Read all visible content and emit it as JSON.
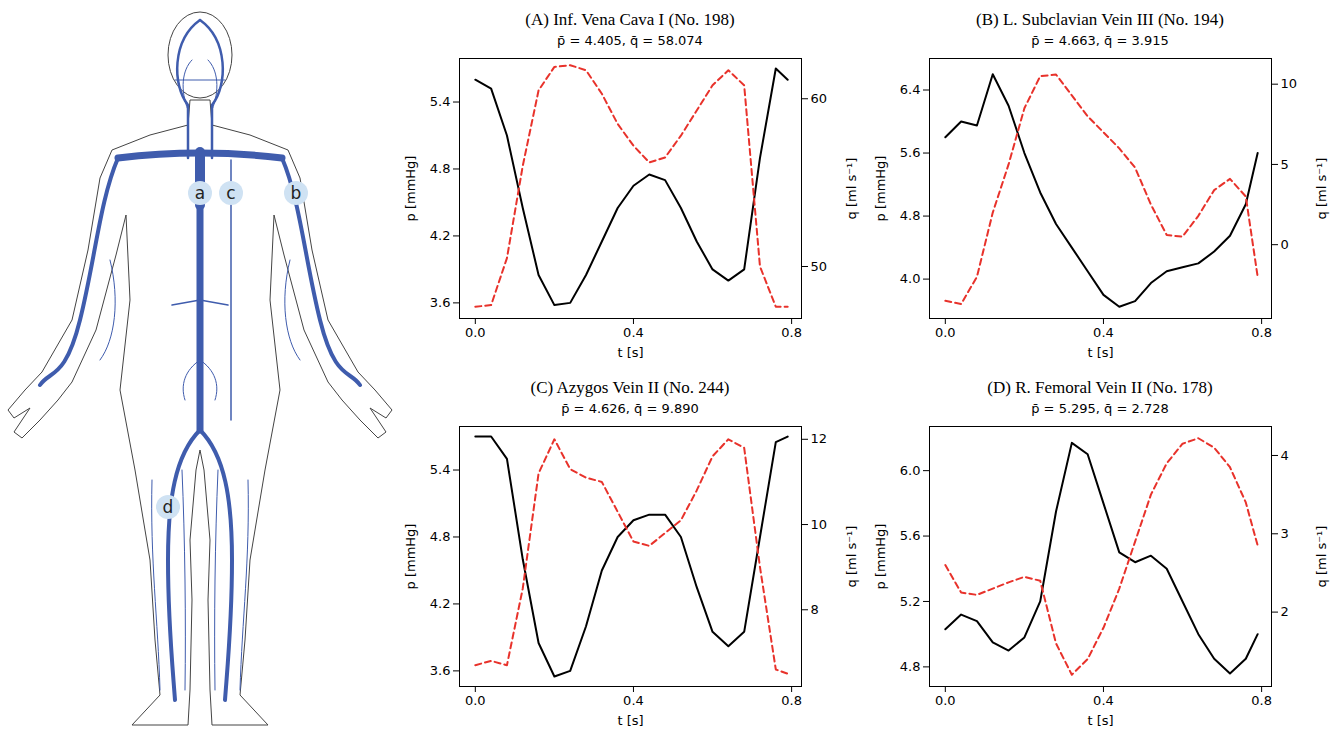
{
  "diagram": {
    "labels": [
      "a",
      "b",
      "c",
      "d"
    ]
  },
  "chart_data": [
    {
      "type": "line",
      "title": "(A) Inf. Vena Cava I (No. 198)",
      "subtitle": "p̄ = 4.405, q̄ = 58.074",
      "x_label": "t [s]",
      "y_label": "p [mmHg]",
      "y2_label": "q [ml s⁻¹]",
      "grid": false,
      "x": [
        0,
        0.04,
        0.08,
        0.12,
        0.16,
        0.2,
        0.24,
        0.28,
        0.32,
        0.36,
        0.4,
        0.44,
        0.48,
        0.52,
        0.56,
        0.6,
        0.64,
        0.68,
        0.72,
        0.76,
        0.79
      ],
      "xlim": [
        -0.04,
        0.825
      ],
      "xticks": [
        {
          "value": 0,
          "label": "0.0"
        },
        0.4,
        0.8
      ],
      "ylim": [
        3.46,
        5.79
      ],
      "yticks": [
        3.6,
        4.2,
        4.8,
        5.4
      ],
      "y2lim": [
        46.9,
        62.4
      ],
      "y2ticks": [
        50,
        60
      ],
      "series": [
        {
          "name": "p",
          "color": "#000000",
          "line_style": "solid",
          "values": [
            5.6,
            5.52,
            5.1,
            4.45,
            3.85,
            3.58,
            3.6,
            3.85,
            4.15,
            4.45,
            4.65,
            4.75,
            4.7,
            4.45,
            4.15,
            3.9,
            3.8,
            3.9,
            4.9,
            5.7,
            5.6
          ]
        },
        {
          "name": "q",
          "color": "#e8322b",
          "line_style": "dashed",
          "axis": "y2",
          "values": [
            47.6,
            47.7,
            50.5,
            56,
            60.5,
            61.9,
            62,
            61.7,
            60.3,
            58.5,
            57.2,
            56.2,
            56.5,
            57.8,
            59.3,
            60.8,
            61.7,
            60.8,
            50,
            47.6,
            47.6
          ]
        }
      ]
    },
    {
      "type": "line",
      "title": "(B) L. Subclavian Vein III (No. 194)",
      "subtitle": "p̄ = 4.663, q̄ = 3.915",
      "x_label": "t [s]",
      "y_label": "p [mmHg]",
      "y2_label": "q [ml s⁻¹]",
      "grid": false,
      "x": [
        0,
        0.04,
        0.08,
        0.12,
        0.16,
        0.2,
        0.24,
        0.28,
        0.32,
        0.36,
        0.4,
        0.44,
        0.48,
        0.52,
        0.56,
        0.6,
        0.64,
        0.68,
        0.72,
        0.76,
        0.79
      ],
      "xlim": [
        -0.04,
        0.825
      ],
      "xticks": [
        {
          "value": 0,
          "label": "0.0"
        },
        0.4,
        0.8
      ],
      "ylim": [
        3.5,
        6.8
      ],
      "yticks": [
        {
          "value": 4,
          "label": "4.0"
        },
        4.8,
        5.6,
        6.4
      ],
      "y2lim": [
        -4.6,
        11.6
      ],
      "y2ticks": [
        0,
        5,
        10
      ],
      "series": [
        {
          "name": "p",
          "color": "#000000",
          "line_style": "solid",
          "values": [
            5.8,
            6.0,
            5.95,
            6.6,
            6.2,
            5.6,
            5.1,
            4.7,
            4.4,
            4.1,
            3.8,
            3.65,
            3.72,
            3.95,
            4.1,
            4.15,
            4.2,
            4.35,
            4.55,
            4.95,
            5.6
          ]
        },
        {
          "name": "q",
          "color": "#e8322b",
          "line_style": "dashed",
          "axis": "y2",
          "values": [
            -3.5,
            -3.7,
            -2,
            2,
            5,
            8.5,
            10.5,
            10.6,
            9.3,
            8,
            7,
            6,
            4.8,
            2.5,
            0.6,
            0.5,
            1.8,
            3.4,
            4.1,
            3,
            -2
          ]
        }
      ]
    },
    {
      "type": "line",
      "title": "(C) Azygos Vein II (No. 244)",
      "subtitle": "p̄ = 4.626, q̄ = 9.890",
      "x_label": "t [s]",
      "y_label": "p [mmHg]",
      "y2_label": "q [ml s⁻¹]",
      "grid": false,
      "x": [
        0,
        0.04,
        0.08,
        0.12,
        0.16,
        0.2,
        0.24,
        0.28,
        0.32,
        0.36,
        0.4,
        0.44,
        0.48,
        0.52,
        0.56,
        0.6,
        0.64,
        0.68,
        0.72,
        0.76,
        0.79
      ],
      "xlim": [
        -0.04,
        0.825
      ],
      "xticks": [
        {
          "value": 0,
          "label": "0.0"
        },
        0.4,
        0.8
      ],
      "ylim": [
        3.46,
        5.79
      ],
      "yticks": [
        3.6,
        4.2,
        4.8,
        5.4
      ],
      "y2lim": [
        6.2,
        12.3
      ],
      "y2ticks": [
        8,
        10,
        12
      ],
      "series": [
        {
          "name": "p",
          "color": "#000000",
          "line_style": "solid",
          "values": [
            5.7,
            5.7,
            5.5,
            4.6,
            3.85,
            3.55,
            3.6,
            4.0,
            4.5,
            4.8,
            4.95,
            5.0,
            5.0,
            4.8,
            4.35,
            3.95,
            3.82,
            3.95,
            4.8,
            5.65,
            5.7
          ]
        },
        {
          "name": "q",
          "color": "#e8322b",
          "line_style": "dashed",
          "axis": "y2",
          "values": [
            6.7,
            6.8,
            6.7,
            8.5,
            11.2,
            12.0,
            11.3,
            11.1,
            11.0,
            10.3,
            9.6,
            9.5,
            9.8,
            10.1,
            10.8,
            11.6,
            12.0,
            11.8,
            9.0,
            6.6,
            6.5
          ]
        }
      ]
    },
    {
      "type": "line",
      "title": "(D) R. Femoral Vein II (No. 178)",
      "subtitle": "p̄ = 5.295, q̄ = 2.728",
      "x_label": "t [s]",
      "y_label": "p [mmHg]",
      "y2_label": "q [ml s⁻¹]",
      "grid": false,
      "x": [
        0,
        0.04,
        0.08,
        0.12,
        0.16,
        0.2,
        0.24,
        0.28,
        0.32,
        0.36,
        0.4,
        0.44,
        0.48,
        0.52,
        0.56,
        0.6,
        0.64,
        0.68,
        0.72,
        0.76,
        0.79
      ],
      "xlim": [
        -0.04,
        0.825
      ],
      "xticks": [
        {
          "value": 0,
          "label": "0.0"
        },
        0.4,
        0.8
      ],
      "ylim": [
        4.68,
        6.27
      ],
      "yticks": [
        4.8,
        5.2,
        5.6,
        {
          "value": 6,
          "label": "6.0"
        }
      ],
      "y2lim": [
        1.05,
        4.37
      ],
      "y2ticks": [
        2,
        3,
        4
      ],
      "series": [
        {
          "name": "p",
          "color": "#000000",
          "line_style": "solid",
          "values": [
            5.03,
            5.12,
            5.08,
            4.95,
            4.9,
            4.98,
            5.2,
            5.75,
            6.17,
            6.1,
            5.8,
            5.5,
            5.44,
            5.48,
            5.4,
            5.2,
            5.0,
            4.85,
            4.76,
            4.85,
            5.0
          ]
        },
        {
          "name": "q",
          "color": "#e8322b",
          "line_style": "dashed",
          "axis": "y2",
          "values": [
            2.6,
            2.25,
            2.22,
            2.3,
            2.38,
            2.45,
            2.4,
            1.6,
            1.2,
            1.4,
            1.8,
            2.3,
            2.9,
            3.5,
            3.9,
            4.15,
            4.22,
            4.1,
            3.85,
            3.4,
            2.85
          ]
        }
      ]
    }
  ]
}
